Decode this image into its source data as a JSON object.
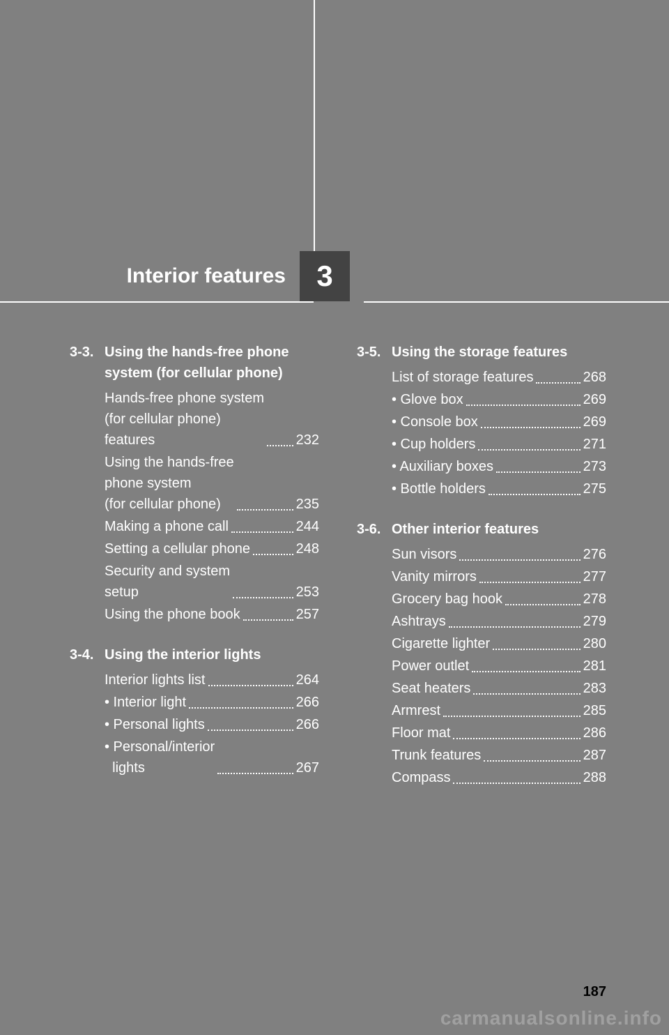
{
  "chapter": {
    "title": "Interior features",
    "number": "3"
  },
  "page_number": "187",
  "watermark": "carmanualsonline.info",
  "colors": {
    "page_bg": "#808080",
    "box_bg": "#434343",
    "text": "#ffffff",
    "page_num_color": "#000000"
  },
  "left_sections": [
    {
      "num": "3-3.",
      "title": "Using the hands-free phone system (for cellular phone)",
      "entries": [
        {
          "label": "Hands-free phone system\n(for cellular phone)\nfeatures",
          "page": "232"
        },
        {
          "label": "Using the hands-free\nphone system\n(for cellular phone)",
          "page": "235"
        },
        {
          "label": "Making a phone call",
          "page": "244"
        },
        {
          "label": "Setting a cellular phone",
          "page": "248"
        },
        {
          "label": "Security and system\nsetup",
          "page": "253"
        },
        {
          "label": "Using the phone book",
          "page": "257"
        }
      ]
    },
    {
      "num": "3-4.",
      "title": "Using the interior lights",
      "entries": [
        {
          "label": "Interior lights list",
          "page": "264"
        },
        {
          "label": "• Interior light",
          "page": "266"
        },
        {
          "label": "• Personal lights",
          "page": "266"
        },
        {
          "label": "• Personal/interior\n  lights",
          "page": "267"
        }
      ]
    }
  ],
  "right_sections": [
    {
      "num": "3-5.",
      "title": "Using the storage features",
      "entries": [
        {
          "label": "List of storage features",
          "page": "268"
        },
        {
          "label": "• Glove box",
          "page": "269"
        },
        {
          "label": "• Console box",
          "page": "269"
        },
        {
          "label": "• Cup holders",
          "page": "271"
        },
        {
          "label": "• Auxiliary boxes",
          "page": "273"
        },
        {
          "label": "• Bottle holders",
          "page": "275"
        }
      ]
    },
    {
      "num": "3-6.",
      "title": "Other interior features",
      "entries": [
        {
          "label": "Sun visors",
          "page": "276"
        },
        {
          "label": "Vanity mirrors",
          "page": "277"
        },
        {
          "label": "Grocery bag hook",
          "page": "278"
        },
        {
          "label": "Ashtrays",
          "page": "279"
        },
        {
          "label": "Cigarette lighter",
          "page": "280"
        },
        {
          "label": "Power outlet",
          "page": "281"
        },
        {
          "label": "Seat heaters",
          "page": "283"
        },
        {
          "label": "Armrest",
          "page": "285"
        },
        {
          "label": "Floor mat",
          "page": "286"
        },
        {
          "label": "Trunk features",
          "page": "287"
        },
        {
          "label": "Compass",
          "page": "288"
        }
      ]
    }
  ]
}
